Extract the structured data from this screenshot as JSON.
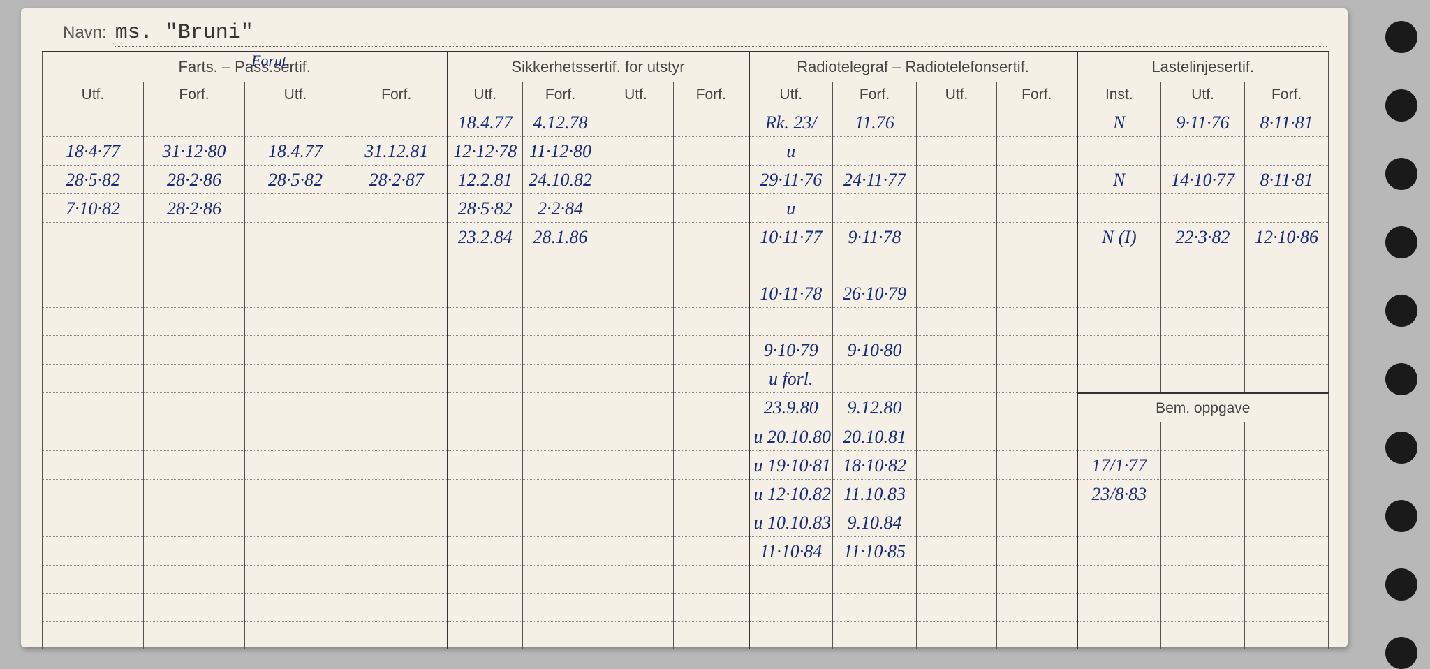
{
  "name_label": "Navn:",
  "name_value": "ms. \"Bruni\"",
  "groups": {
    "farts": "Farts. – Pass.sertif.",
    "sikkerhet": "Sikkerhetssertif. for utstyr",
    "radio": "Radiotelegraf – Radiotelefonsertif.",
    "lastelinje": "Lastelinjesertif."
  },
  "sub": {
    "utf": "Utf.",
    "forf": "Forf.",
    "inst": "Inst."
  },
  "annot_pass": "Forut.",
  "farts_pass": {
    "rows": [
      {
        "u1": "18·4·77",
        "f1": "31·12·80",
        "u2": "18.4.77",
        "f2": "31.12.81"
      },
      {
        "u1": "28·5·82",
        "f1": "28·2·86",
        "u2": "28·5·82",
        "f2": "28·2·87"
      },
      {
        "u1": "7·10·82",
        "f1": "28·2·86",
        "u2": "",
        "f2": ""
      }
    ]
  },
  "sikkerhet": {
    "rows": [
      {
        "u1": "18.4.77",
        "f1": "4.12.78",
        "cls": "pencil"
      },
      {
        "u1": "12·12·78",
        "f1": "11·12·80",
        "cls": ""
      },
      {
        "u1": "12.2.81",
        "f1": "24.10.82",
        "cls": "pencil"
      },
      {
        "u1": "28·5·82",
        "f1": "2·2·84",
        "cls": ""
      },
      {
        "u1": "23.2.84",
        "f1": "28.1.86",
        "cls": "pencil"
      }
    ]
  },
  "radio": {
    "rows": [
      {
        "u": "Rk. 23/",
        "f": "11.76",
        "cls": ""
      },
      {
        "u": "u",
        "f": "",
        "cls": "pencil"
      },
      {
        "u": "29·11·76",
        "f": "24·11·77",
        "cls": ""
      },
      {
        "u": "u",
        "f": "",
        "cls": "pencil"
      },
      {
        "u": "10·11·77",
        "f": "9·11·78",
        "cls": ""
      },
      {
        "u": "",
        "f": "",
        "cls": ""
      },
      {
        "u": "10·11·78",
        "f": "26·10·79",
        "cls": ""
      },
      {
        "u": "",
        "f": "",
        "cls": ""
      },
      {
        "u": "9·10·79",
        "f": "9·10·80",
        "cls": ""
      },
      {
        "u": "u forl.",
        "f": "",
        "cls": "pencil"
      },
      {
        "u": "23.9.80",
        "f": "9.12.80",
        "cls": ""
      },
      {
        "u": "u 20.10.80",
        "f": "20.10.81",
        "cls": "pencil"
      },
      {
        "u": "u 19·10·81",
        "f": "18·10·82",
        "cls": ""
      },
      {
        "u": "u 12·10.82",
        "f": "11.10.83",
        "cls": "pencil"
      },
      {
        "u": "u 10.10.83",
        "f": "9.10.84",
        "cls": "pencil"
      },
      {
        "u": "11·10·84",
        "f": "11·10·85",
        "cls": ""
      }
    ]
  },
  "lastelinje": {
    "rows": [
      {
        "i": "N",
        "u": "9·11·76",
        "f": "8·11·81"
      },
      {
        "i": "",
        "u": "",
        "f": ""
      },
      {
        "i": "N",
        "u": "14·10·77",
        "f": "8·11·81"
      },
      {
        "i": "",
        "u": "",
        "f": ""
      },
      {
        "i": "N (I)",
        "u": "22·3·82",
        "f": "12·10·86"
      }
    ]
  },
  "bem_header": "Bem. oppgave",
  "bem_rows": [
    "17/1·77",
    "23/8·83"
  ]
}
